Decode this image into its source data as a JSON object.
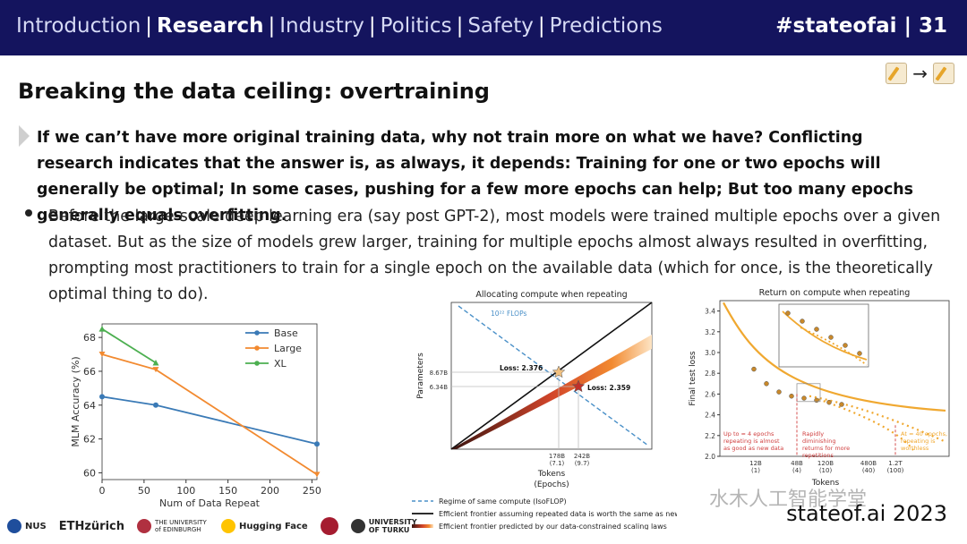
{
  "header": {
    "nav": [
      "Introduction",
      "Research",
      "Industry",
      "Politics",
      "Safety",
      "Predictions"
    ],
    "active_index": 1,
    "separator": "|",
    "tag": "#stateofai | 31",
    "bg_color": "#14145e"
  },
  "icons": {
    "edit_left": "memo-pencil-icon",
    "arrow": "→",
    "edit_right": "memo-pencil-icon"
  },
  "title": "Breaking the data ceiling: overtraining",
  "lead": "If we can’t have more original training data, why not train more on what we have? Conflicting research indicates that the answer is, as always, it depends: Training for one or two epochs will generally be optimal; In some cases, pushing for a few more epochs can help; But too many epochs generally equals overfitting.",
  "bullet": "Before the large-scale deep learning era (say post GPT-2), most models were trained multiple epochs over a given dataset. But as the size of models grew larger, training for multiple epochs almost always resulted in overfitting, prompting most practitioners to train for a single epoch on the available data (which for once, is the theoretically optimal thing to do).",
  "chart_data": [
    {
      "type": "line",
      "xlabel": "Num of Data Repeat",
      "ylabel": "MLM Accuracy (%)",
      "xlim": [
        0,
        256
      ],
      "ylim": [
        59.6,
        68.8
      ],
      "xticks": [
        0,
        50,
        100,
        150,
        200,
        250
      ],
      "yticks": [
        60,
        62,
        64,
        66,
        68
      ],
      "legend_position": "top-right",
      "series": [
        {
          "name": "Base",
          "color": "#3a7ab6",
          "x": [
            0,
            64,
            256
          ],
          "y": [
            64.5,
            64.0,
            61.7
          ]
        },
        {
          "name": "Large",
          "color": "#f28a30",
          "x": [
            0,
            64,
            256
          ],
          "y": [
            67.0,
            66.1,
            59.9
          ]
        },
        {
          "name": "XL",
          "color": "#4caf50",
          "x": [
            0,
            64
          ],
          "y": [
            68.5,
            66.5
          ]
        }
      ]
    },
    {
      "type": "line",
      "title": "Allocating compute when repeating",
      "xlabel": "Tokens",
      "xlabel2": "(Epochs)",
      "ylabel": "Parameters",
      "y_tick_labels": [
        "8.67B",
        "6.34B"
      ],
      "x_tick_labels": [
        [
          "178B",
          "(7.1)"
        ],
        [
          "242B",
          "(9.7)"
        ]
      ],
      "isoflop_label": "10²² FLOPs",
      "points": [
        {
          "label": "Loss: 2.376",
          "tokens": "178B",
          "params": "8.67B"
        },
        {
          "label": "Loss: 2.359",
          "tokens": "242B",
          "params": "6.34B"
        }
      ],
      "legend": [
        {
          "label": "Regime of same compute (IsoFLOP)",
          "style": "dashed",
          "color": "#4a90c8"
        },
        {
          "label": "Efficient frontier assuming repeated data is worth the same as new data",
          "style": "solid",
          "color": "#111111"
        },
        {
          "label": "Efficient frontier predicted by our data-constrained scaling laws",
          "style": "gradient",
          "color": "#e8622a"
        }
      ]
    },
    {
      "type": "scatter",
      "title": "Return on compute when repeating",
      "xlabel": "Tokens",
      "ylabel": "Final test loss",
      "ylim": [
        2.0,
        3.5
      ],
      "yticks": [
        2.0,
        2.2,
        2.4,
        2.6,
        2.8,
        3.0,
        3.2,
        3.4
      ],
      "x_tick_labels": [
        [
          "12B",
          "(1)"
        ],
        [
          "48B",
          "(4)"
        ],
        [
          "120B",
          "(10)"
        ],
        [
          "480B",
          "(40)"
        ],
        [
          "1.2T",
          "(100)"
        ]
      ],
      "regions": [
        "Up to ≈ 4 epochs repeating is almost as good as new data",
        "Rapidly diminishing returns for more repetitions",
        "At ≈ 40 epochs, repeating is worthless"
      ],
      "series": [
        {
          "color": "#f0a830",
          "x": [
            0,
            1,
            2,
            3,
            4,
            5,
            6,
            7
          ],
          "y": [
            2.84,
            2.7,
            2.62,
            2.58,
            2.56,
            2.54,
            2.52,
            2.5
          ]
        }
      ]
    }
  ],
  "footer": {
    "logos": [
      "NUS",
      "ETHzürich",
      "THE UNIVERSITY of EDINBURGH",
      "Hugging Face",
      "",
      "UNIVERSITY OF TURKU"
    ],
    "watermark": "水木人工智能学堂",
    "site": "stateof.ai 2023"
  }
}
